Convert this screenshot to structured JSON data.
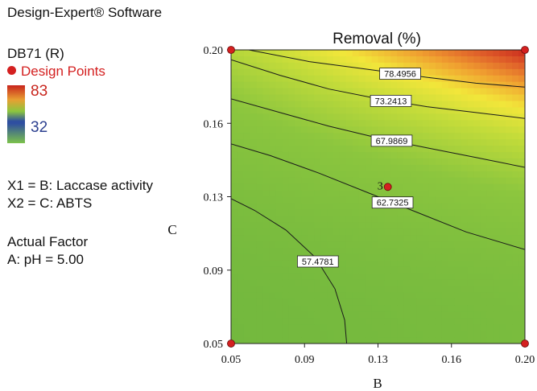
{
  "panel": {
    "title": "Design-Expert® Software",
    "response": "DB71 (R)",
    "legend_points": "Design Points",
    "color_high": "83",
    "color_low": "32",
    "x1": "X1 = B: Laccase activity",
    "x2": "X2 = C: ABTS",
    "actual_factor_heading": "Actual Factor",
    "actual_factor_value": "A: pH = 5.00"
  },
  "chart_data": {
    "type": "heatmap",
    "subtype": "contour",
    "title": "Removal (%)",
    "xlabel": "B",
    "ylabel": "C",
    "x_ticks": [
      "0.05",
      "0.09",
      "0.13",
      "0.16",
      "0.20"
    ],
    "y_ticks": [
      "0.05",
      "0.09",
      "0.13",
      "0.16",
      "0.20"
    ],
    "xlim": [
      0.05,
      0.2
    ],
    "ylim": [
      0.05,
      0.2
    ],
    "color_range": [
      32,
      83
    ],
    "colors": {
      "low": "#7cc24a",
      "mid": "#f2e63a",
      "high": "#c8241c"
    },
    "contours": [
      {
        "label": "57.4781",
        "points": [
          [
            0.05,
            0.124
          ],
          [
            0.062,
            0.118
          ],
          [
            0.078,
            0.108
          ],
          [
            0.093,
            0.094
          ],
          [
            0.103,
            0.078
          ],
          [
            0.108,
            0.062
          ],
          [
            0.109,
            0.05
          ]
        ]
      },
      {
        "label": "62.7325",
        "points": [
          [
            0.05,
            0.152
          ],
          [
            0.07,
            0.146
          ],
          [
            0.095,
            0.137
          ],
          [
            0.12,
            0.127
          ],
          [
            0.145,
            0.117
          ],
          [
            0.17,
            0.107
          ],
          [
            0.2,
            0.098
          ]
        ]
      },
      {
        "label": "67.9869",
        "points": [
          [
            0.05,
            0.175
          ],
          [
            0.075,
            0.168
          ],
          [
            0.1,
            0.161
          ],
          [
            0.125,
            0.155
          ],
          [
            0.15,
            0.15
          ],
          [
            0.175,
            0.145
          ],
          [
            0.2,
            0.14
          ]
        ]
      },
      {
        "label": "73.2413",
        "points": [
          [
            0.05,
            0.195
          ],
          [
            0.075,
            0.187
          ],
          [
            0.1,
            0.18
          ],
          [
            0.125,
            0.175
          ],
          [
            0.15,
            0.171
          ],
          [
            0.175,
            0.168
          ],
          [
            0.2,
            0.165
          ]
        ]
      },
      {
        "label": "78.4956",
        "points": [
          [
            0.059,
            0.2
          ],
          [
            0.09,
            0.194
          ],
          [
            0.12,
            0.19
          ],
          [
            0.15,
            0.186
          ],
          [
            0.175,
            0.183
          ],
          [
            0.2,
            0.181
          ]
        ]
      }
    ],
    "design_points": [
      {
        "x": 0.05,
        "y": 0.2
      },
      {
        "x": 0.2,
        "y": 0.2
      },
      {
        "x": 0.05,
        "y": 0.05
      },
      {
        "x": 0.2,
        "y": 0.05
      },
      {
        "x": 0.13,
        "y": 0.13,
        "label": "3"
      }
    ]
  }
}
